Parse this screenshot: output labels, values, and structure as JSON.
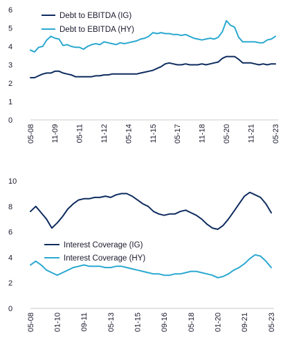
{
  "chart_data": [
    {
      "type": "line",
      "title": "",
      "xlabel": "",
      "ylabel": "",
      "ylim": [
        0,
        6
      ],
      "yticks": [
        0,
        1,
        2,
        3,
        4,
        5,
        6
      ],
      "grid": false,
      "legend": "top-left",
      "x": [
        "05-08",
        "08-08",
        "11-08",
        "02-09",
        "05-09",
        "08-09",
        "11-09",
        "02-10",
        "05-10",
        "08-10",
        "11-10",
        "02-11",
        "05-11",
        "08-11",
        "11-11",
        "02-12",
        "05-12",
        "08-12",
        "11-12",
        "02-13",
        "05-13",
        "08-13",
        "11-13",
        "02-14",
        "05-14",
        "08-14",
        "11-14",
        "02-15",
        "05-15",
        "08-15",
        "11-15",
        "02-16",
        "05-16",
        "08-16",
        "11-16",
        "02-17",
        "05-17",
        "08-17",
        "11-17",
        "02-18",
        "05-18",
        "08-18",
        "11-18",
        "02-19",
        "05-19",
        "08-19",
        "11-19",
        "02-20",
        "05-20",
        "08-20",
        "11-20",
        "02-21",
        "05-21",
        "08-21",
        "11-21",
        "02-22",
        "05-22",
        "08-22",
        "11-22",
        "02-23",
        "05-23"
      ],
      "xticks": [
        "05-08",
        "11-09",
        "05-11",
        "11-12",
        "05-14",
        "11-15",
        "05-17",
        "11-18",
        "05-20",
        "11-21",
        "05-23"
      ],
      "series": [
        {
          "name": "Debt to EBITDA (IG)",
          "color": "#0d2b5e",
          "values": [
            2.3,
            2.3,
            2.4,
            2.5,
            2.55,
            2.55,
            2.65,
            2.65,
            2.55,
            2.5,
            2.45,
            2.35,
            2.35,
            2.35,
            2.35,
            2.35,
            2.4,
            2.4,
            2.45,
            2.45,
            2.5,
            2.5,
            2.5,
            2.5,
            2.5,
            2.5,
            2.5,
            2.55,
            2.6,
            2.65,
            2.7,
            2.8,
            2.9,
            3.05,
            3.1,
            3.05,
            3.0,
            3.0,
            3.05,
            3.0,
            3.0,
            3.0,
            3.05,
            3.0,
            3.05,
            3.1,
            3.15,
            3.35,
            3.45,
            3.45,
            3.45,
            3.3,
            3.1,
            3.1,
            3.1,
            3.05,
            3.0,
            3.05,
            3.0,
            3.05,
            3.05
          ]
        },
        {
          "name": "Debt to EBITDA (HY)",
          "color": "#2aa8d0",
          "values": [
            3.8,
            3.7,
            3.95,
            4.0,
            4.35,
            4.55,
            4.45,
            4.4,
            4.05,
            4.1,
            4.0,
            3.95,
            3.95,
            3.85,
            4.0,
            4.1,
            4.15,
            4.1,
            4.25,
            4.2,
            4.15,
            4.1,
            4.2,
            4.15,
            4.2,
            4.25,
            4.3,
            4.4,
            4.45,
            4.55,
            4.75,
            4.7,
            4.75,
            4.7,
            4.7,
            4.65,
            4.65,
            4.6,
            4.65,
            4.55,
            4.45,
            4.4,
            4.35,
            4.4,
            4.45,
            4.4,
            4.5,
            4.8,
            5.4,
            5.15,
            5.05,
            4.5,
            4.25,
            4.25,
            4.25,
            4.25,
            4.2,
            4.2,
            4.35,
            4.4,
            4.55
          ]
        }
      ]
    },
    {
      "type": "line",
      "title": "",
      "xlabel": "",
      "ylabel": "",
      "ylim": [
        0,
        10
      ],
      "yticks": [
        0,
        2,
        4,
        6,
        8,
        10
      ],
      "grid": false,
      "legend": "center",
      "x": [
        "05-08",
        "09-08",
        "01-09",
        "05-09",
        "09-09",
        "01-10",
        "05-10",
        "09-10",
        "01-11",
        "05-11",
        "09-11",
        "01-12",
        "05-12",
        "09-12",
        "01-13",
        "05-13",
        "09-13",
        "01-14",
        "05-14",
        "09-14",
        "01-15",
        "05-15",
        "09-15",
        "01-16",
        "05-16",
        "09-16",
        "01-17",
        "05-17",
        "09-17",
        "01-18",
        "05-18",
        "09-18",
        "01-19",
        "05-19",
        "09-19",
        "01-20",
        "05-20",
        "09-20",
        "01-21",
        "05-21",
        "09-21",
        "01-22",
        "05-22",
        "09-22",
        "01-23",
        "05-23"
      ],
      "xticks": [
        "05-08",
        "01-10",
        "09-11",
        "05-13",
        "01-15",
        "09-16",
        "05-18",
        "01-20",
        "09-21",
        "05-23"
      ],
      "series": [
        {
          "name": "Interest Coverage (IG)",
          "color": "#0d2b5e",
          "values": [
            7.6,
            8.0,
            7.5,
            7.0,
            6.3,
            6.7,
            7.2,
            7.8,
            8.2,
            8.5,
            8.6,
            8.6,
            8.7,
            8.7,
            8.8,
            8.7,
            8.9,
            9.0,
            9.0,
            8.8,
            8.5,
            8.2,
            8.0,
            7.6,
            7.4,
            7.3,
            7.4,
            7.4,
            7.6,
            7.7,
            7.5,
            7.3,
            7.0,
            6.6,
            6.3,
            6.2,
            6.5,
            7.0,
            7.6,
            8.2,
            8.8,
            9.1,
            8.9,
            8.7,
            8.2,
            7.5
          ]
        },
        {
          "name": "Interest Coverage (HY)",
          "color": "#2aa8d0",
          "values": [
            3.4,
            3.7,
            3.4,
            3.0,
            2.8,
            2.6,
            2.8,
            3.0,
            3.2,
            3.3,
            3.4,
            3.3,
            3.3,
            3.3,
            3.2,
            3.2,
            3.3,
            3.3,
            3.2,
            3.1,
            3.0,
            2.9,
            2.8,
            2.7,
            2.7,
            2.6,
            2.6,
            2.7,
            2.7,
            2.8,
            2.9,
            2.9,
            2.8,
            2.7,
            2.6,
            2.4,
            2.5,
            2.7,
            3.0,
            3.2,
            3.5,
            3.9,
            4.2,
            4.1,
            3.7,
            3.2
          ]
        }
      ]
    }
  ]
}
